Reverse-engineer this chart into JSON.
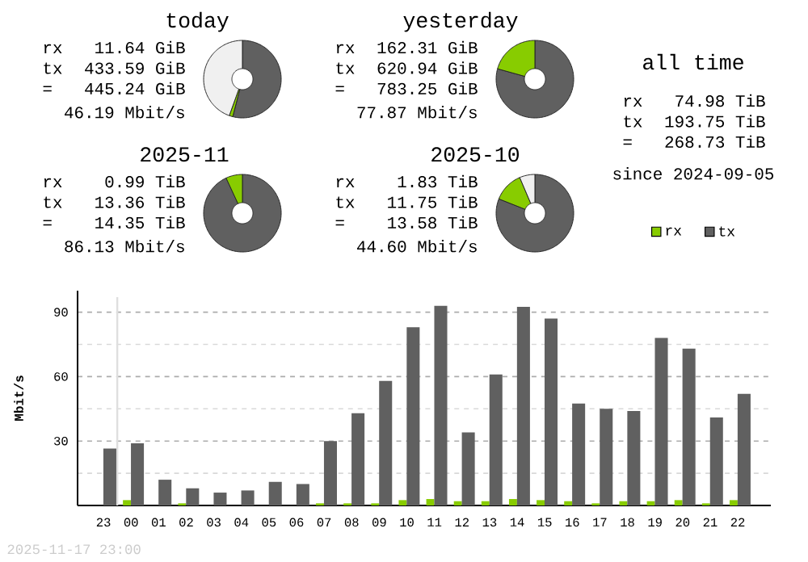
{
  "chart_data": [
    {
      "type": "donut",
      "title": "today",
      "categories": [
        null,
        null,
        null
      ],
      "values": [
        54,
        1.5,
        44.5
      ],
      "colors": [
        "#606060",
        "#88cc00",
        "#f0f0f0"
      ],
      "annotations": [
        "rx",
        "11.64 GiB",
        "tx",
        "433.59 GiB",
        "=",
        "445.24 GiB",
        "46.19 Mbit/s"
      ]
    },
    {
      "type": "donut",
      "title": "yesterday",
      "categories": [
        null,
        null
      ],
      "values": [
        79.3,
        20.7
      ],
      "colors": [
        "#606060",
        "#88cc00"
      ],
      "annotations": [
        "rx",
        "162.31 GiB",
        "tx",
        "620.94 GiB",
        "=",
        "783.25 GiB",
        "77.87 Mbit/s"
      ]
    },
    {
      "type": "donut",
      "title": "2025-11",
      "categories": [
        null,
        null
      ],
      "values": [
        93.1,
        6.9
      ],
      "colors": [
        "#606060",
        "#88cc00"
      ],
      "annotations": [
        "rx",
        "0.99 TiB",
        "tx",
        "13.36 TiB",
        "=",
        "14.35 TiB",
        "86.13 Mbit/s"
      ]
    },
    {
      "type": "donut",
      "title": "2025-10",
      "categories": [
        null,
        null,
        null
      ],
      "values": [
        81,
        12.6,
        6.4
      ],
      "colors": [
        "#606060",
        "#88cc00",
        "#f0f0f0"
      ],
      "annotations": [
        "rx",
        "1.83 TiB",
        "tx",
        "11.75 TiB",
        "=",
        "13.58 TiB",
        "44.60 Mbit/s"
      ]
    },
    {
      "type": "other",
      "title": "all time",
      "annotations": [
        "rx",
        "74.98 TiB",
        "tx",
        "193.75 TiB",
        "=",
        "268.73 TiB",
        "since 2024-09-05"
      ]
    },
    {
      "type": "bar",
      "ylabel": "Mbit/s",
      "categories": [
        "23",
        "00",
        "01",
        "02",
        "03",
        "04",
        "05",
        "06",
        "07",
        "08",
        "09",
        "10",
        "11",
        "12",
        "13",
        "14",
        "15",
        "16",
        "17",
        "18",
        "19",
        "20",
        "21",
        "22"
      ],
      "series": [
        {
          "name": "rx",
          "color": "#88cc00",
          "values": [
            0,
            2.5,
            0,
            1,
            0,
            0,
            0,
            0,
            1,
            1,
            1,
            2.5,
            3,
            2,
            2,
            3,
            2.5,
            2,
            1,
            2,
            2,
            2.5,
            1,
            2.5
          ]
        },
        {
          "name": "tx",
          "color": "#606060",
          "values": [
            26.5,
            29,
            12,
            8,
            6,
            7,
            11,
            10,
            30,
            43,
            58,
            83,
            93,
            34,
            61,
            92.5,
            87,
            47.5,
            45,
            44,
            78,
            73,
            41,
            52
          ]
        }
      ],
      "ylim": [
        0,
        100
      ],
      "yticks": [
        {
          "value": 15,
          "label": null
        },
        30,
        {
          "value": 45,
          "label": null
        },
        60,
        {
          "value": 75,
          "label": null
        },
        90
      ],
      "grid": "y",
      "legend": "top right",
      "ref_lines": [
        {
          "axis": "x",
          "value": "00"
        }
      ],
      "annotations": [
        "2025-11-17 23:00"
      ]
    }
  ]
}
